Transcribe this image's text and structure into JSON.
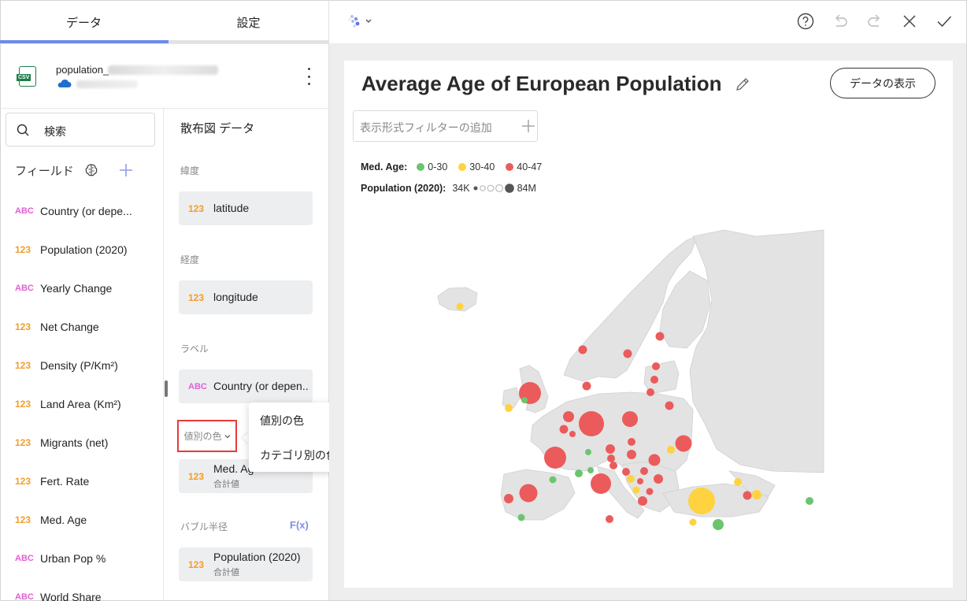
{
  "tabs": {
    "data": "データ",
    "settings": "設定"
  },
  "datasource": {
    "name": "population_"
  },
  "search": {
    "label": "検索"
  },
  "fields_header": "フィールド",
  "fields": [
    {
      "type": "ABC",
      "name": "Country (or depe..."
    },
    {
      "type": "123",
      "name": "Population (2020)"
    },
    {
      "type": "ABC",
      "name": "Yearly Change"
    },
    {
      "type": "123",
      "name": "Net Change"
    },
    {
      "type": "123",
      "name": "Density (P/Km²)"
    },
    {
      "type": "123",
      "name": "Land Area (Km²)"
    },
    {
      "type": "123",
      "name": "Migrants (net)"
    },
    {
      "type": "123",
      "name": "Fert. Rate"
    },
    {
      "type": "123",
      "name": "Med. Age"
    },
    {
      "type": "ABC",
      "name": "Urban Pop %"
    },
    {
      "type": "ABC",
      "name": "World Share"
    }
  ],
  "config": {
    "title": "散布図 データ",
    "latitude_label": "緯度",
    "latitude_field": {
      "type": "123",
      "name": "latitude"
    },
    "longitude_label": "経度",
    "longitude_field": {
      "type": "123",
      "name": "longitude"
    },
    "label_label": "ラベル",
    "label_field": {
      "type": "ABC",
      "name": "Country (or depen..."
    },
    "color_mode": "値別の色",
    "color_field": {
      "type": "123",
      "name": "Med. Ag",
      "sub": "合計値"
    },
    "bubble_label": "バブル半径",
    "fx": "F(x)",
    "bubble_field": {
      "type": "123",
      "name": "Population (2020)",
      "sub": "合計値"
    }
  },
  "popup": {
    "options": [
      {
        "label": "値別の色",
        "checked": true
      },
      {
        "label": "カテゴリ別の色",
        "checked": false
      }
    ]
  },
  "viz": {
    "title": "Average Age of European Population",
    "show_data_button": "データの表示",
    "filter_placeholder": "表示形式フィルターの追加",
    "legend": {
      "med_age_label": "Med. Age:",
      "ranges": [
        {
          "label": "0-30",
          "color": "#6cc56e"
        },
        {
          "label": "30-40",
          "color": "#ffd23f"
        },
        {
          "label": "40-47",
          "color": "#eb5b5b"
        }
      ],
      "population_label": "Population (2020):",
      "pop_min": "34K",
      "pop_max": "84M"
    }
  },
  "colors": {
    "accent": "#6c8be8",
    "highlight": "#e43b3b",
    "land": "#e3e3e3"
  }
}
